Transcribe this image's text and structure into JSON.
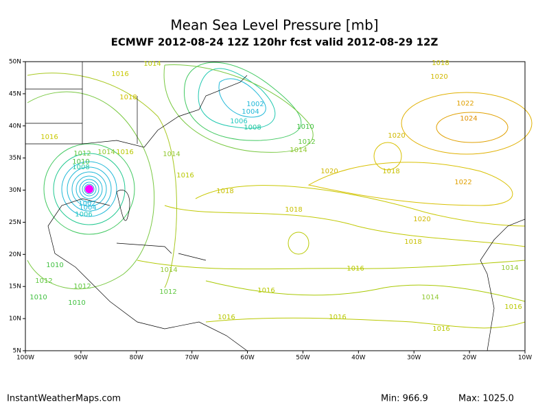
{
  "header": {
    "title": "Mean Sea Level Pressure [mb]",
    "subtitle": "ECMWF 2012-08-24 12Z 120hr fcst valid 2012-08-29 12Z"
  },
  "map": {
    "lat_labels": [
      "50N",
      "45N",
      "40N",
      "35N",
      "30N",
      "25N",
      "20N",
      "15N",
      "10N",
      "5N"
    ],
    "lon_labels": [
      "100W",
      "90W",
      "80W",
      "70W",
      "60W",
      "50W",
      "40W",
      "30W",
      "20W",
      "10W"
    ],
    "contour_labels": [
      "1014",
      "1016",
      "1018",
      "1016",
      "1002",
      "1004",
      "1006",
      "1008",
      "1010",
      "1012",
      "1014",
      "1014",
      "1012",
      "1014",
      "1016",
      "1010",
      "1008",
      "1016",
      "1018",
      "1020",
      "1020",
      "1018",
      "1022",
      "1024",
      "1022",
      "1020",
      "1018",
      "1018",
      "1020",
      "1018",
      "1016",
      "1016",
      "1014",
      "1012",
      "1014",
      "1016",
      "1016",
      "1016",
      "1014",
      "1016",
      "1010",
      "1012",
      "1012",
      "1010",
      "1010",
      "1006",
      "1004",
      "1002"
    ]
  },
  "footer": {
    "source": "InstantWeatherMaps.com",
    "min": "Min:  966.9",
    "max": "Max: 1025.0"
  }
}
